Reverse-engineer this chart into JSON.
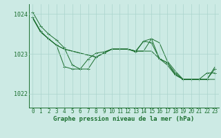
{
  "bg_color": "#cceae4",
  "grid_color": "#aad4cc",
  "line_color": "#1a6e2e",
  "marker_color": "#1a6e2e",
  "xlabel": "Graphe pression niveau de la mer (hPa)",
  "xlabel_fontsize": 6.5,
  "ylabel_fontsize": 6,
  "tick_fontsize": 5.5,
  "xlim": [
    -0.5,
    23.5
  ],
  "ylim": [
    1021.65,
    1024.25
  ],
  "yticks": [
    1022,
    1023,
    1024
  ],
  "xticks": [
    0,
    1,
    2,
    3,
    4,
    5,
    6,
    7,
    8,
    9,
    10,
    11,
    12,
    13,
    14,
    15,
    16,
    17,
    18,
    19,
    20,
    21,
    22,
    23
  ],
  "series": [
    [
      1024.05,
      1023.7,
      1023.5,
      1023.35,
      1023.15,
      1022.72,
      1022.62,
      1022.62,
      1022.92,
      1023.02,
      1023.12,
      1023.12,
      1023.12,
      1023.05,
      1023.32,
      1023.38,
      1022.88,
      1022.78,
      1022.48,
      1022.36,
      1022.36,
      1022.36,
      1022.36,
      1022.62
    ],
    [
      1023.9,
      1023.55,
      1023.38,
      1023.22,
      1023.12,
      1023.07,
      1023.02,
      1022.97,
      1022.92,
      1023.02,
      1023.12,
      1023.12,
      1023.12,
      1023.07,
      1023.07,
      1023.07,
      1022.88,
      1022.72,
      1022.47,
      1022.36,
      1022.36,
      1022.36,
      1022.36,
      1022.36
    ],
    [
      1023.9,
      1023.55,
      1023.38,
      1023.22,
      1023.12,
      1023.07,
      1023.02,
      1022.97,
      1022.92,
      1023.02,
      1023.12,
      1023.12,
      1023.12,
      1023.07,
      1023.07,
      1023.38,
      1023.28,
      1022.82,
      1022.57,
      1022.36,
      1022.36,
      1022.36,
      1022.36,
      1022.67
    ],
    [
      1023.92,
      1023.57,
      1023.38,
      1023.22,
      1022.68,
      1022.62,
      1022.62,
      1022.87,
      1023.02,
      1023.05,
      1023.12,
      1023.12,
      1023.12,
      1023.07,
      1023.32,
      1023.28,
      1022.88,
      1022.78,
      1022.52,
      1022.36,
      1022.36,
      1022.36,
      1022.52,
      1022.52
    ]
  ],
  "series_markers": [
    true,
    false,
    false,
    true
  ]
}
